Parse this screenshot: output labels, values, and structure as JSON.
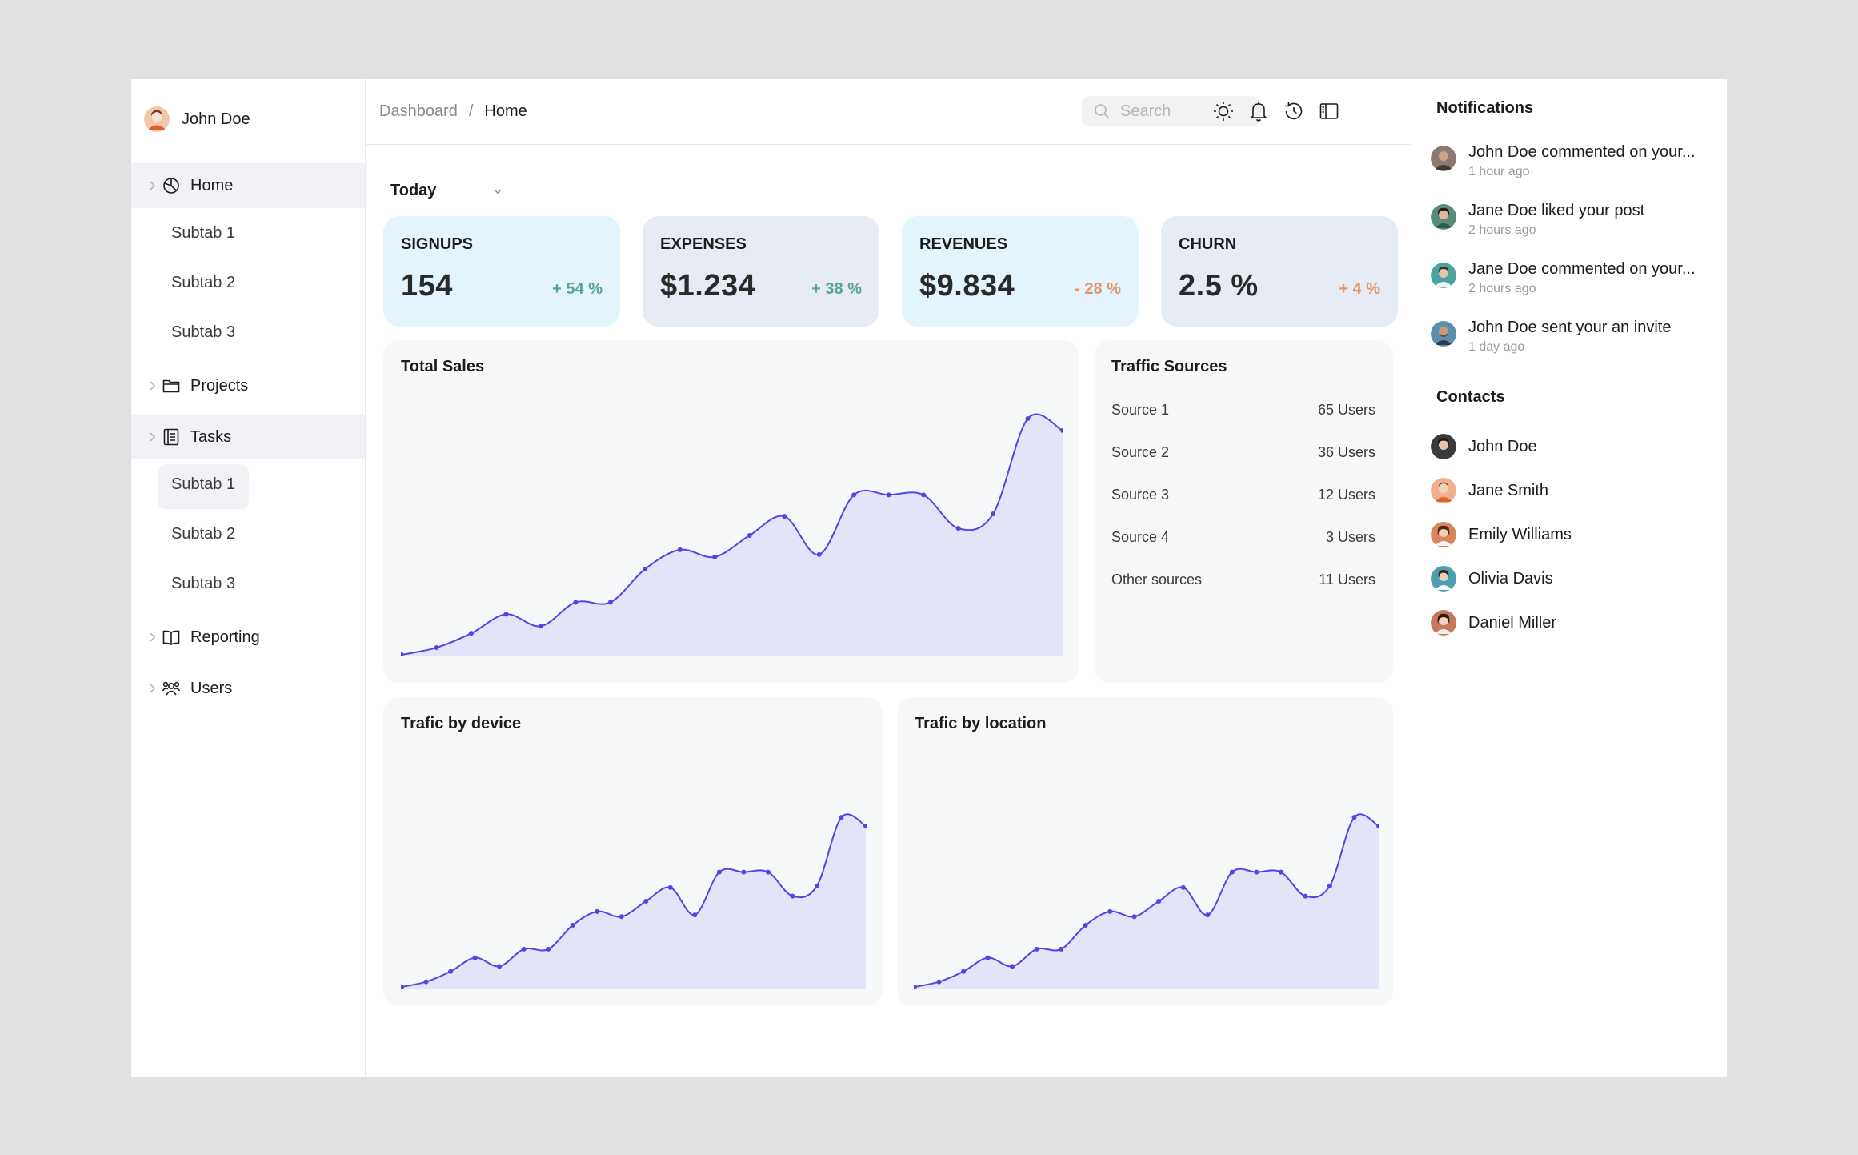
{
  "user": {
    "name": "John Doe"
  },
  "sidebar": {
    "items": [
      {
        "label": "Home",
        "icon": "pie-chart-icon",
        "subtabs": [
          "Subtab 1",
          "Subtab 2",
          "Subtab 3"
        ]
      },
      {
        "label": "Projects",
        "icon": "folder-icon"
      },
      {
        "label": "Tasks",
        "icon": "clipboard-icon",
        "subtabs": [
          "Subtab 1",
          "Subtab 2",
          "Subtab 3"
        ]
      },
      {
        "label": "Reporting",
        "icon": "book-icon"
      },
      {
        "label": "Users",
        "icon": "users-icon"
      }
    ]
  },
  "breadcrumb": {
    "parent": "Dashboard",
    "separator": "/",
    "current": "Home"
  },
  "search": {
    "placeholder": "Search"
  },
  "topbar_icons": [
    "sun-icon",
    "bell-icon",
    "history-icon",
    "sidebar-toggle-icon"
  ],
  "period": {
    "selected": "Today"
  },
  "stats": [
    {
      "title": "SIGNUPS",
      "value": "154",
      "change": "+ 54 %"
    },
    {
      "title": "EXPENSES",
      "value": "$1.234",
      "change": "+ 38 %"
    },
    {
      "title": "REVENUES",
      "value": "$9.834",
      "change": "- 28 %"
    },
    {
      "title": "CHURN",
      "value": "2.5 %",
      "change": "+ 4 %"
    }
  ],
  "colors": {
    "accent": "#4f46e5",
    "area_fill": "#e4e4f8",
    "positive": "#5aa58e",
    "negative": "#e3956a",
    "card_blue": "#e3f4fc",
    "card_slate": "#e6ebf4"
  },
  "total_sales": {
    "title": "Total Sales"
  },
  "traffic_sources": {
    "title": "Traffic Sources",
    "rows": [
      {
        "source": "Source 1",
        "users": "65 Users"
      },
      {
        "source": "Source 2",
        "users": "36 Users"
      },
      {
        "source": "Source 3",
        "users": "12 Users"
      },
      {
        "source": "Source 4",
        "users": "3 Users"
      },
      {
        "source": "Other sources",
        "users": "11 Users"
      }
    ]
  },
  "device_chart": {
    "title": "Trafic by device"
  },
  "location_chart": {
    "title": "Trafic by location"
  },
  "chart_data": [
    {
      "type": "area",
      "title": "Total Sales",
      "x": [
        1,
        2,
        3,
        4,
        5,
        6,
        7,
        8,
        9,
        10,
        11,
        12,
        13,
        14,
        15,
        16,
        17,
        18,
        19,
        20
      ],
      "values": [
        0,
        3,
        9,
        17,
        12,
        22,
        22,
        36,
        44,
        41,
        50,
        58,
        42,
        67,
        67,
        67,
        53,
        59,
        99,
        94
      ],
      "ylim": [
        0,
        100
      ]
    },
    {
      "type": "area",
      "title": "Trafic by device",
      "x": [
        1,
        2,
        3,
        4,
        5,
        6,
        7,
        8,
        9,
        10,
        11,
        12,
        13,
        14,
        15,
        16,
        17,
        18,
        19,
        20
      ],
      "values": [
        0,
        3,
        9,
        17,
        12,
        22,
        22,
        36,
        44,
        41,
        50,
        58,
        42,
        67,
        67,
        67,
        53,
        59,
        99,
        94
      ],
      "ylim": [
        0,
        100
      ]
    },
    {
      "type": "area",
      "title": "Trafic by location",
      "x": [
        1,
        2,
        3,
        4,
        5,
        6,
        7,
        8,
        9,
        10,
        11,
        12,
        13,
        14,
        15,
        16,
        17,
        18,
        19,
        20
      ],
      "values": [
        0,
        3,
        9,
        17,
        12,
        22,
        22,
        36,
        44,
        41,
        50,
        58,
        42,
        67,
        67,
        67,
        53,
        59,
        99,
        94
      ],
      "ylim": [
        0,
        100
      ]
    }
  ],
  "notifications": {
    "title": "Notifications",
    "items": [
      {
        "text": "John Doe commented on your...",
        "time": "1 hour ago"
      },
      {
        "text": "Jane Doe liked your post",
        "time": "2 hours ago"
      },
      {
        "text": "Jane Doe commented on your...",
        "time": "2 hours ago"
      },
      {
        "text": "John Doe sent your an invite",
        "time": "1 day ago"
      }
    ]
  },
  "contacts": {
    "title": "Contacts",
    "items": [
      {
        "name": "John Doe"
      },
      {
        "name": "Jane Smith"
      },
      {
        "name": "Emily Williams"
      },
      {
        "name": "Olivia Davis"
      },
      {
        "name": "Daniel Miller"
      }
    ]
  }
}
